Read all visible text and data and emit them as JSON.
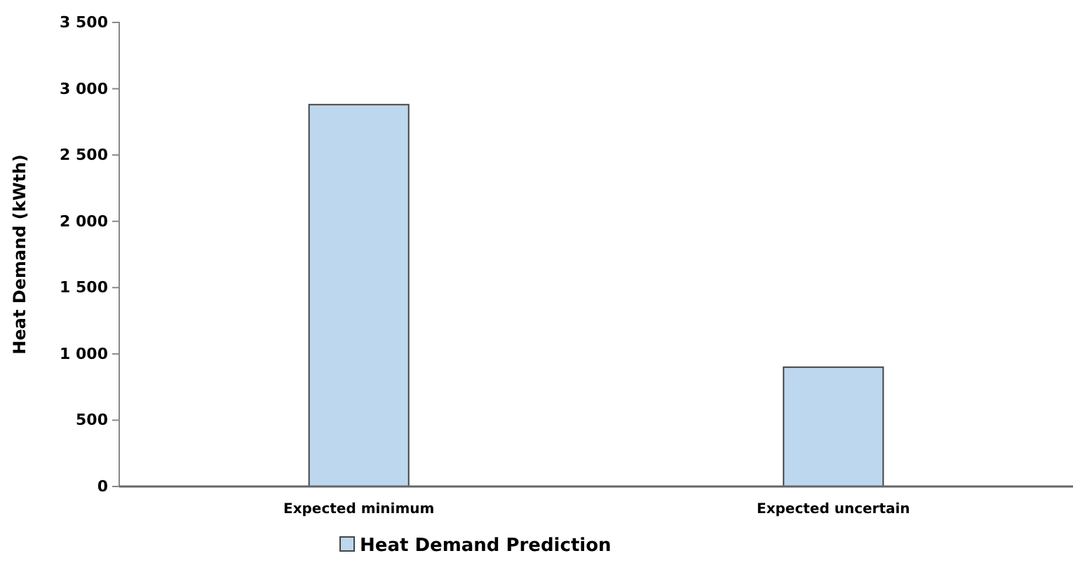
{
  "chart_data": {
    "type": "bar",
    "ylabel": "Heat Demand (kWth)",
    "categories": [
      "Expected minimum",
      "Expected uncertain"
    ],
    "series": [
      {
        "name": "Heat Demand Prediction",
        "color": "#bdd7ee",
        "values": [
          2880,
          900
        ]
      }
    ],
    "ylim": [
      0,
      3500
    ],
    "yticks": [
      0,
      500,
      {
        "value": 1000,
        "label": "1 000"
      },
      {
        "value": 1500,
        "label": "1 500"
      },
      {
        "value": 2000,
        "label": "2 000"
      },
      {
        "value": 2500,
        "label": "2 500"
      },
      {
        "value": 3000,
        "label": "3 000"
      },
      {
        "value": 3500,
        "label": "3 500"
      }
    ],
    "grid": false,
    "legend": "bottom"
  }
}
